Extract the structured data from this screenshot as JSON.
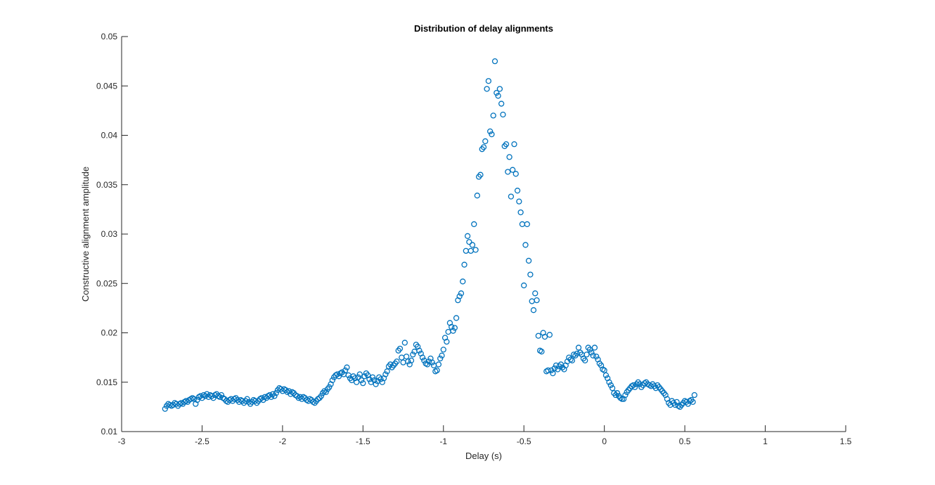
{
  "chart_data": {
    "type": "scatter",
    "title": "Distribution of delay alignments",
    "xlabel": "Delay (s)",
    "ylabel": "Constructive alignment amplitude",
    "xlim": [
      -3,
      1.5
    ],
    "ylim": [
      0.01,
      0.05
    ],
    "xticks": [
      -3,
      -2.5,
      -2,
      -1.5,
      -1,
      -0.5,
      0,
      0.5,
      1,
      1.5
    ],
    "xtick_labels": [
      "-3",
      "-2.5",
      "-2",
      "-1.5",
      "-1",
      "-0.5",
      "0",
      "0.5",
      "1",
      "1.5"
    ],
    "yticks": [
      0.01,
      0.015,
      0.02,
      0.025,
      0.03,
      0.035,
      0.04,
      0.045,
      0.05
    ],
    "ytick_labels": [
      "0.01",
      "0.015",
      "0.02",
      "0.025",
      "0.03",
      "0.035",
      "0.04",
      "0.045",
      "0.05"
    ],
    "grid": false,
    "marker": "circle-open",
    "marker_color": "#0072BD",
    "axis_color": "#262626",
    "x_start": -2.73,
    "x_step": 0.01,
    "y": [
      0.0123,
      0.0126,
      0.0128,
      0.0127,
      0.0126,
      0.0127,
      0.0129,
      0.0128,
      0.0126,
      0.0128,
      0.0129,
      0.0128,
      0.013,
      0.0131,
      0.013,
      0.0132,
      0.0133,
      0.0134,
      0.0133,
      0.0128,
      0.0132,
      0.0135,
      0.0136,
      0.0134,
      0.0137,
      0.0136,
      0.0138,
      0.0135,
      0.0137,
      0.0136,
      0.0134,
      0.0137,
      0.0138,
      0.0136,
      0.0135,
      0.0137,
      0.0134,
      0.0133,
      0.0131,
      0.013,
      0.0132,
      0.0133,
      0.0131,
      0.0133,
      0.0134,
      0.0132,
      0.013,
      0.0132,
      0.0131,
      0.0129,
      0.0131,
      0.0133,
      0.013,
      0.0128,
      0.013,
      0.0132,
      0.0131,
      0.0129,
      0.0131,
      0.0133,
      0.0134,
      0.0132,
      0.0135,
      0.0134,
      0.0136,
      0.0137,
      0.0135,
      0.0138,
      0.0136,
      0.0139,
      0.0142,
      0.0144,
      0.0143,
      0.0141,
      0.0143,
      0.0142,
      0.014,
      0.0141,
      0.0138,
      0.014,
      0.0139,
      0.0137,
      0.0136,
      0.0134,
      0.0135,
      0.0133,
      0.0135,
      0.0134,
      0.0132,
      0.0131,
      0.0133,
      0.0132,
      0.013,
      0.0129,
      0.0131,
      0.0133,
      0.0134,
      0.0136,
      0.0139,
      0.0141,
      0.014,
      0.0143,
      0.0145,
      0.0148,
      0.0152,
      0.0155,
      0.0157,
      0.0158,
      0.0156,
      0.0159,
      0.016,
      0.0158,
      0.0162,
      0.0165,
      0.0157,
      0.0154,
      0.0152,
      0.0156,
      0.0154,
      0.015,
      0.0155,
      0.0158,
      0.0152,
      0.0149,
      0.0156,
      0.0159,
      0.0157,
      0.0153,
      0.015,
      0.0155,
      0.0152,
      0.0148,
      0.0151,
      0.0155,
      0.0153,
      0.015,
      0.0154,
      0.0158,
      0.0161,
      0.0166,
      0.0168,
      0.0165,
      0.0167,
      0.0169,
      0.0171,
      0.0182,
      0.0184,
      0.0175,
      0.017,
      0.019,
      0.0176,
      0.0171,
      0.0168,
      0.0172,
      0.0178,
      0.0181,
      0.0188,
      0.0186,
      0.0182,
      0.0179,
      0.0175,
      0.0172,
      0.0169,
      0.0168,
      0.0171,
      0.0174,
      0.017,
      0.0167,
      0.0161,
      0.0162,
      0.0168,
      0.0174,
      0.0177,
      0.0183,
      0.0195,
      0.0191,
      0.0201,
      0.021,
      0.0206,
      0.0202,
      0.0205,
      0.0215,
      0.0233,
      0.0237,
      0.024,
      0.0252,
      0.0269,
      0.0283,
      0.0298,
      0.0292,
      0.0283,
      0.0289,
      0.031,
      0.0284,
      0.0339,
      0.0358,
      0.036,
      0.0386,
      0.0388,
      0.0394,
      0.0447,
      0.0455,
      0.0404,
      0.0401,
      0.042,
      0.0475,
      0.0443,
      0.044,
      0.0447,
      0.0432,
      0.0421,
      0.0389,
      0.0391,
      0.0363,
      0.0378,
      0.0338,
      0.0365,
      0.0391,
      0.0361,
      0.0344,
      0.0333,
      0.0322,
      0.031,
      0.0248,
      0.0289,
      0.031,
      0.0273,
      0.0259,
      0.0232,
      0.0223,
      0.024,
      0.0233,
      0.0197,
      0.0182,
      0.0181,
      0.02,
      0.0196,
      0.0161,
      0.0162,
      0.0198,
      0.0162,
      0.0159,
      0.0164,
      0.0167,
      0.0163,
      0.0166,
      0.0168,
      0.0165,
      0.0163,
      0.0167,
      0.0171,
      0.0175,
      0.0173,
      0.0172,
      0.0178,
      0.0177,
      0.0179,
      0.0185,
      0.018,
      0.0178,
      0.0174,
      0.0172,
      0.0178,
      0.0185,
      0.0183,
      0.018,
      0.0177,
      0.0185,
      0.0176,
      0.0173,
      0.0169,
      0.0167,
      0.0163,
      0.0162,
      0.0157,
      0.0154,
      0.015,
      0.0147,
      0.0144,
      0.0139,
      0.0137,
      0.0139,
      0.0136,
      0.0134,
      0.0133,
      0.0133,
      0.0137,
      0.014,
      0.0142,
      0.0144,
      0.0146,
      0.0147,
      0.0145,
      0.0148,
      0.015,
      0.0148,
      0.0145,
      0.0147,
      0.0149,
      0.015,
      0.0148,
      0.0147,
      0.0146,
      0.0148,
      0.0146,
      0.0144,
      0.0147,
      0.0145,
      0.0143,
      0.0141,
      0.0139,
      0.0137,
      0.0133,
      0.0129,
      0.0127,
      0.0131,
      0.0129,
      0.0127,
      0.013,
      0.0126,
      0.0125,
      0.0127,
      0.0129,
      0.0131,
      0.013,
      0.0128,
      0.0131,
      0.0132,
      0.013,
      0.0137
    ]
  }
}
